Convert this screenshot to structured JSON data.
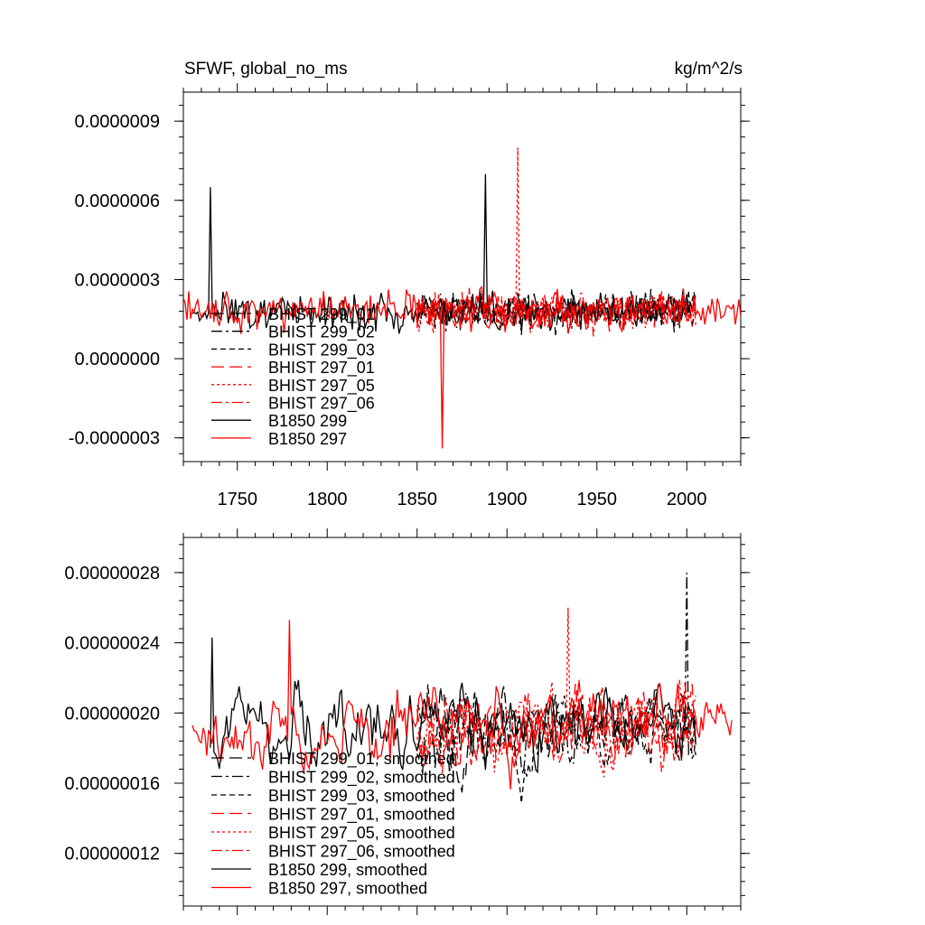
{
  "figure": {
    "title_left": "SFWF, global_no_ms",
    "title_right": "kg/m^2/s"
  },
  "chart_data": [
    {
      "type": "line",
      "panel": "top",
      "title": "SFWF, global_no_ms",
      "units": "kg/m^2/s",
      "xlim": [
        1720,
        2030
      ],
      "ylim": [
        -3.9e-07,
        1.01e-06
      ],
      "x_ticks": [
        1750,
        1800,
        1850,
        1900,
        1950,
        2000
      ],
      "x_tick_labels": [
        "1750",
        "1800",
        "1850",
        "1900",
        "1950",
        "2000"
      ],
      "y_ticks": [
        -3e-07,
        0.0,
        3e-07,
        6e-07,
        9e-07
      ],
      "y_tick_labels": [
        "-0.0000003",
        "0.0000000",
        "0.0000003",
        "0.0000006",
        "0.0000009"
      ],
      "legend_position": "lower-left",
      "series": [
        {
          "name": "BHIST 299_01",
          "color": "#000000",
          "dash": "long-dash",
          "x_start": 1850,
          "x_end": 2005,
          "mean": 1.8e-07,
          "amp": 1e-07,
          "seed": 11
        },
        {
          "name": "BHIST 299_02",
          "color": "#000000",
          "dash": "dash-dot",
          "x_start": 1850,
          "x_end": 2005,
          "mean": 1.8e-07,
          "amp": 1e-07,
          "seed": 12
        },
        {
          "name": "BHIST 299_03",
          "color": "#000000",
          "dash": "short-dash",
          "x_start": 1850,
          "x_end": 2005,
          "mean": 1.8e-07,
          "amp": 1e-07,
          "seed": 13
        },
        {
          "name": "BHIST 297_01",
          "color": "#ff0000",
          "dash": "long-dash",
          "x_start": 1850,
          "x_end": 2005,
          "mean": 1.8e-07,
          "amp": 1e-07,
          "seed": 14
        },
        {
          "name": "BHIST 297_05",
          "color": "#ff0000",
          "dash": "dotted",
          "x_start": 1850,
          "x_end": 2005,
          "mean": 1.8e-07,
          "amp": 1e-07,
          "seed": 15
        },
        {
          "name": "BHIST 297_06",
          "color": "#ff0000",
          "dash": "dash-dot",
          "x_start": 1850,
          "x_end": 2005,
          "mean": 1.8e-07,
          "amp": 1e-07,
          "seed": 16
        },
        {
          "name": "B1850 299",
          "color": "#000000",
          "dash": "solid",
          "x_start": 1725,
          "x_end": 2005,
          "mean": 1.8e-07,
          "amp": 1e-07,
          "seed": 17
        },
        {
          "name": "B1850 297",
          "color": "#ff0000",
          "dash": "solid",
          "x_start": 1720,
          "x_end": 2030,
          "mean": 1.8e-07,
          "amp": 1e-07,
          "seed": 18
        }
      ],
      "annotated_peaks": [
        {
          "series": "B1850 299",
          "x": 1735,
          "y": 6.5e-07
        },
        {
          "series": "BHIST 297_05",
          "x": 1906,
          "y": 8e-07
        },
        {
          "series": "B1850 299",
          "x": 1888,
          "y": 7e-07
        },
        {
          "series": "B1850 297",
          "x": 1864,
          "y": -3.4e-07
        }
      ]
    },
    {
      "type": "line",
      "panel": "bottom",
      "xlim": [
        1720,
        2030
      ],
      "ylim": [
        9e-08,
        3e-07
      ],
      "x_ticks": [
        1750,
        1800,
        1850,
        1900,
        1950,
        2000
      ],
      "x_tick_labels": [
        "",
        "",
        "",
        "",
        "",
        ""
      ],
      "y_ticks": [
        1.2e-07,
        1.6e-07,
        2e-07,
        2.4e-07,
        2.8e-07
      ],
      "y_tick_labels": [
        "0.00000012",
        "0.00000016",
        "0.00000020",
        "0.00000024",
        "0.00000028"
      ],
      "legend_position": "lower-left",
      "series": [
        {
          "name": "BHIST 299_01, smoothed",
          "color": "#000000",
          "dash": "long-dash",
          "x_start": 1850,
          "x_end": 2005,
          "mean": 1.9e-07,
          "amp": 2.5e-08,
          "seed": 21
        },
        {
          "name": "BHIST 299_02, smoothed",
          "color": "#000000",
          "dash": "dash-dot",
          "x_start": 1850,
          "x_end": 2005,
          "mean": 1.9e-07,
          "amp": 2.5e-08,
          "seed": 22
        },
        {
          "name": "BHIST 299_03, smoothed",
          "color": "#000000",
          "dash": "short-dash",
          "x_start": 1850,
          "x_end": 2005,
          "mean": 1.9e-07,
          "amp": 2.5e-08,
          "seed": 23
        },
        {
          "name": "BHIST 297_01, smoothed",
          "color": "#ff0000",
          "dash": "long-dash",
          "x_start": 1850,
          "x_end": 2005,
          "mean": 1.9e-07,
          "amp": 2.5e-08,
          "seed": 24
        },
        {
          "name": "BHIST 297_05, smoothed",
          "color": "#ff0000",
          "dash": "dotted",
          "x_start": 1850,
          "x_end": 2005,
          "mean": 1.9e-07,
          "amp": 2.5e-08,
          "seed": 25
        },
        {
          "name": "BHIST 297_06, smoothed",
          "color": "#ff0000",
          "dash": "dash-dot",
          "x_start": 1850,
          "x_end": 2005,
          "mean": 1.9e-07,
          "amp": 2.5e-08,
          "seed": 26
        },
        {
          "name": "B1850 299, smoothed",
          "color": "#000000",
          "dash": "solid",
          "x_start": 1735,
          "x_end": 2005,
          "mean": 1.9e-07,
          "amp": 2.5e-08,
          "seed": 27
        },
        {
          "name": "B1850 297, smoothed",
          "color": "#ff0000",
          "dash": "solid",
          "x_start": 1725,
          "x_end": 2025,
          "mean": 1.9e-07,
          "amp": 2.5e-08,
          "seed": 28
        }
      ],
      "annotated_peaks": [
        {
          "series": "BHIST 299_02, smoothed",
          "x": 2000,
          "y": 2.8e-07
        },
        {
          "series": "B1850 297, smoothed",
          "x": 1779,
          "y": 2.53e-07
        },
        {
          "series": "B1850 299, smoothed",
          "x": 1736,
          "y": 2.43e-07
        },
        {
          "series": "BHIST 297_05, smoothed",
          "x": 1934,
          "y": 2.6e-07
        }
      ]
    }
  ]
}
